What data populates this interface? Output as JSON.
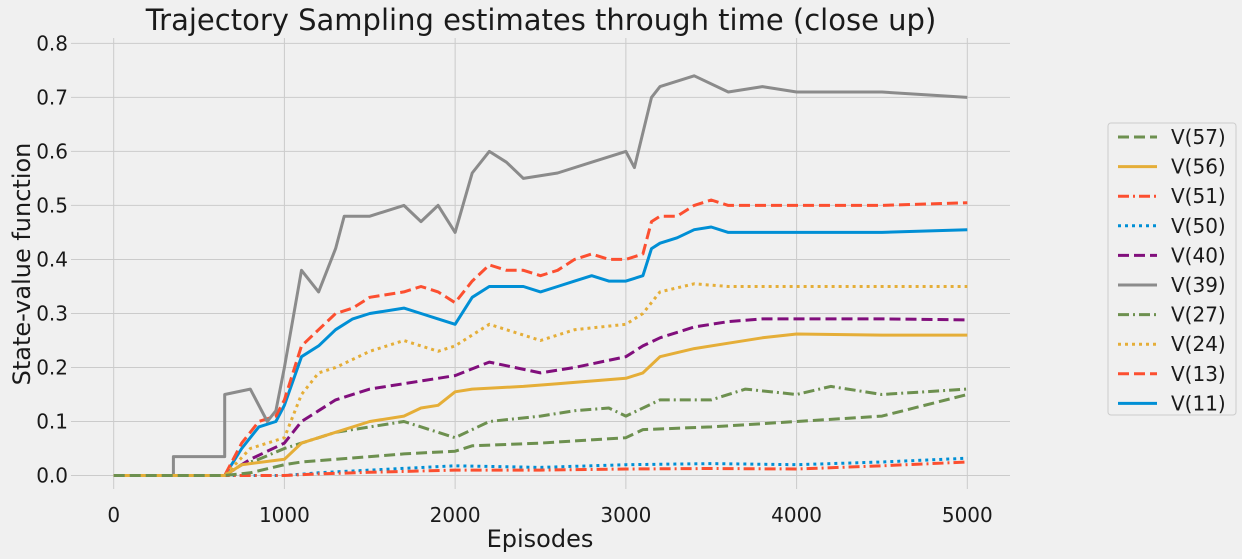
{
  "chart_data": {
    "type": "line",
    "title": "Trajectory Sampling estimates through time (close up)",
    "xlabel": "Episodes",
    "ylabel": "State-value function",
    "xlim": [
      -250,
      5250
    ],
    "ylim": [
      -0.025,
      0.81
    ],
    "x_ticks": [
      0,
      1000,
      2000,
      3000,
      4000,
      5000
    ],
    "y_ticks": [
      0.0,
      0.1,
      0.2,
      0.3,
      0.4,
      0.5,
      0.6,
      0.7,
      0.8
    ],
    "x_tick_labels": [
      "0",
      "1000",
      "2000",
      "3000",
      "4000",
      "5000"
    ],
    "y_tick_labels": [
      "0.0",
      "0.1",
      "0.2",
      "0.3",
      "0.4",
      "0.5",
      "0.6",
      "0.7",
      "0.8"
    ],
    "grid": true,
    "legend_position": "right",
    "background": "#f0f0f0",
    "series": [
      {
        "name": "V(57)",
        "color": "#6d904f",
        "dash": "dashed",
        "x": [
          0,
          650,
          800,
          1000,
          1100,
          1300,
          1500,
          1700,
          2000,
          2100,
          2500,
          3000,
          3100,
          3500,
          4000,
          4500,
          5000
        ],
        "y": [
          0,
          0,
          0.005,
          0.02,
          0.025,
          0.03,
          0.035,
          0.04,
          0.045,
          0.055,
          0.06,
          0.07,
          0.085,
          0.09,
          0.1,
          0.11,
          0.15
        ]
      },
      {
        "name": "V(56)",
        "color": "#e5ae38",
        "dash": "solid",
        "x": [
          0,
          650,
          750,
          1000,
          1100,
          1300,
          1500,
          1700,
          1800,
          1900,
          2000,
          2100,
          2400,
          2600,
          2800,
          3000,
          3100,
          3200,
          3400,
          3600,
          3800,
          4000,
          4500,
          5000
        ],
        "y": [
          0,
          0,
          0.02,
          0.03,
          0.06,
          0.08,
          0.1,
          0.11,
          0.125,
          0.13,
          0.155,
          0.16,
          0.165,
          0.17,
          0.175,
          0.18,
          0.19,
          0.22,
          0.235,
          0.245,
          0.255,
          0.262,
          0.26,
          0.26
        ]
      },
      {
        "name": "V(51)",
        "color": "#fc4f30",
        "dash": "dashdot",
        "x": [
          0,
          1000,
          1200,
          1500,
          2000,
          2500,
          3000,
          3500,
          4000,
          4500,
          5000
        ],
        "y": [
          0,
          0,
          0.003,
          0.006,
          0.01,
          0.01,
          0.012,
          0.013,
          0.012,
          0.018,
          0.025
        ]
      },
      {
        "name": "V(50)",
        "color": "#008fd5",
        "dash": "dotted",
        "x": [
          0,
          1000,
          1200,
          1500,
          2000,
          2500,
          3000,
          3500,
          4000,
          4500,
          5000
        ],
        "y": [
          0,
          0,
          0.005,
          0.01,
          0.018,
          0.015,
          0.02,
          0.022,
          0.02,
          0.025,
          0.032
        ]
      },
      {
        "name": "V(40)",
        "color": "#810f7c",
        "dash": "dashed",
        "x": [
          0,
          650,
          800,
          1000,
          1100,
          1200,
          1300,
          1500,
          1700,
          1900,
          2000,
          2200,
          2500,
          2700,
          3000,
          3100,
          3200,
          3400,
          3600,
          3800,
          4000,
          4500,
          5000
        ],
        "y": [
          0,
          0,
          0.03,
          0.06,
          0.1,
          0.12,
          0.14,
          0.16,
          0.17,
          0.18,
          0.185,
          0.21,
          0.19,
          0.2,
          0.22,
          0.24,
          0.255,
          0.275,
          0.285,
          0.29,
          0.29,
          0.29,
          0.288
        ]
      },
      {
        "name": "V(39)",
        "color": "#8b8b8b",
        "dash": "solid",
        "x": [
          0,
          350,
          350,
          650,
          650,
          800,
          900,
          950,
          1000,
          1100,
          1150,
          1200,
          1300,
          1350,
          1500,
          1700,
          1800,
          1900,
          2000,
          2100,
          2200,
          2300,
          2400,
          2600,
          2800,
          3000,
          3050,
          3150,
          3200,
          3400,
          3600,
          3800,
          4000,
          4500,
          5000
        ],
        "y": [
          0,
          0,
          0.035,
          0.035,
          0.15,
          0.16,
          0.1,
          0.12,
          0.2,
          0.38,
          0.36,
          0.34,
          0.42,
          0.48,
          0.48,
          0.5,
          0.47,
          0.5,
          0.45,
          0.56,
          0.6,
          0.58,
          0.55,
          0.56,
          0.58,
          0.6,
          0.57,
          0.7,
          0.72,
          0.74,
          0.71,
          0.72,
          0.71,
          0.71,
          0.7
        ]
      },
      {
        "name": "V(27)",
        "color": "#6d904f",
        "dash": "dashdot",
        "x": [
          0,
          650,
          750,
          850,
          1000,
          1100,
          1300,
          1500,
          1700,
          2000,
          2200,
          2500,
          2700,
          2900,
          3000,
          3200,
          3500,
          3700,
          4000,
          4200,
          4500,
          5000
        ],
        "y": [
          0,
          0,
          0.02,
          0.03,
          0.05,
          0.06,
          0.08,
          0.09,
          0.1,
          0.07,
          0.1,
          0.11,
          0.12,
          0.125,
          0.11,
          0.14,
          0.14,
          0.16,
          0.15,
          0.165,
          0.15,
          0.16
        ]
      },
      {
        "name": "V(24)",
        "color": "#e5ae38",
        "dash": "dotted",
        "x": [
          0,
          650,
          800,
          1000,
          1100,
          1200,
          1300,
          1500,
          1700,
          1900,
          2000,
          2200,
          2500,
          2700,
          3000,
          3100,
          3200,
          3400,
          3600,
          3800,
          4000,
          4500,
          5000
        ],
        "y": [
          0,
          0,
          0.05,
          0.07,
          0.15,
          0.19,
          0.2,
          0.23,
          0.25,
          0.23,
          0.24,
          0.28,
          0.25,
          0.27,
          0.28,
          0.3,
          0.34,
          0.355,
          0.35,
          0.35,
          0.35,
          0.35,
          0.35
        ]
      },
      {
        "name": "V(13)",
        "color": "#fc4f30",
        "dash": "dashed",
        "x": [
          0,
          650,
          750,
          850,
          950,
          1000,
          1100,
          1200,
          1300,
          1400,
          1500,
          1700,
          1800,
          1900,
          2000,
          2100,
          2200,
          2300,
          2400,
          2500,
          2600,
          2700,
          2800,
          2900,
          3000,
          3100,
          3150,
          3200,
          3300,
          3400,
          3500,
          3600,
          3800,
          4000,
          4500,
          5000
        ],
        "y": [
          0,
          0,
          0.06,
          0.1,
          0.11,
          0.14,
          0.24,
          0.27,
          0.3,
          0.31,
          0.33,
          0.34,
          0.35,
          0.34,
          0.32,
          0.36,
          0.39,
          0.38,
          0.38,
          0.37,
          0.38,
          0.4,
          0.41,
          0.4,
          0.4,
          0.41,
          0.47,
          0.48,
          0.48,
          0.5,
          0.51,
          0.5,
          0.5,
          0.5,
          0.5,
          0.505
        ]
      },
      {
        "name": "V(11)",
        "color": "#008fd5",
        "dash": "solid",
        "x": [
          0,
          650,
          750,
          850,
          950,
          1000,
          1100,
          1200,
          1300,
          1400,
          1500,
          1700,
          1800,
          1900,
          2000,
          2100,
          2200,
          2300,
          2400,
          2500,
          2600,
          2700,
          2800,
          2900,
          3000,
          3100,
          3150,
          3200,
          3300,
          3400,
          3500,
          3600,
          3800,
          4000,
          4500,
          5000
        ],
        "y": [
          0,
          0,
          0.05,
          0.09,
          0.1,
          0.13,
          0.22,
          0.24,
          0.27,
          0.29,
          0.3,
          0.31,
          0.3,
          0.29,
          0.28,
          0.33,
          0.35,
          0.35,
          0.35,
          0.34,
          0.35,
          0.36,
          0.37,
          0.36,
          0.36,
          0.37,
          0.42,
          0.43,
          0.44,
          0.455,
          0.46,
          0.45,
          0.45,
          0.45,
          0.45,
          0.455
        ]
      }
    ]
  }
}
